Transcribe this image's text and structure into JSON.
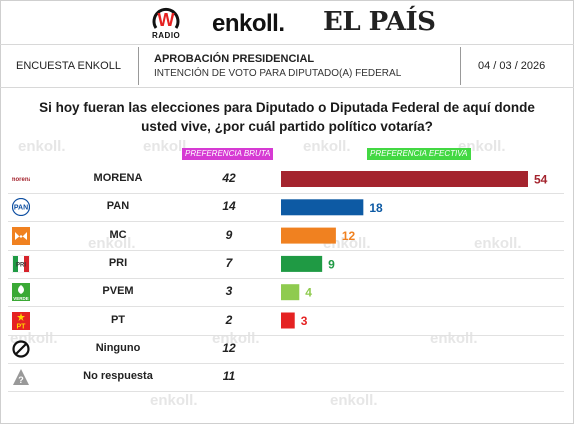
{
  "brand": {
    "wradio_letter": "W",
    "wradio_sub": "RADIO",
    "enkoll": "enkoll.",
    "elpais": "EL PAÍS",
    "watermark": "enkoll."
  },
  "header": {
    "left": "ENCUESTA ENKOLL",
    "title": "APROBACIÓN PRESIDENCIAL",
    "subtitle": "INTENCIÓN DE VOTO PARA DIPUTADO(A) FEDERAL",
    "date": "04 / 03 / 2026"
  },
  "question": "Si hoy fueran las elecciones para Diputado o Diputada Federal de aquí donde usted vive, ¿por cuál partido político votaría?",
  "chart_data": {
    "type": "bar",
    "orientation": "horizontal",
    "columns": {
      "bruta": "PREFERENCIA BRUTA",
      "efectiva": "PREFERENCIA EFECTIVA"
    },
    "categories": [
      "MORENA",
      "PAN",
      "MC",
      "PRI",
      "PVEM",
      "PT",
      "Ninguno",
      "No respuesta"
    ],
    "series": [
      {
        "name": "PREFERENCIA BRUTA",
        "values": [
          42,
          14,
          9,
          7,
          3,
          2,
          12,
          11
        ]
      },
      {
        "name": "PREFERENCIA EFECTIVA",
        "values": [
          54,
          18,
          12,
          9,
          4,
          3,
          null,
          null
        ]
      }
    ],
    "bar_colors": [
      "#a4242e",
      "#0d5aa4",
      "#f08120",
      "#1f9a44",
      "#8fcb4f",
      "#e52222"
    ],
    "xlim": [
      0,
      54
    ],
    "grid": false,
    "legend": "none"
  },
  "logos": {
    "MORENA": {
      "icon": "morena-logo",
      "text": "morena",
      "color": "#a4242e"
    },
    "PAN": {
      "icon": "pan-logo",
      "text": "PAN",
      "color": "#0d4ea1"
    },
    "MC": {
      "icon": "mc-logo",
      "color": "#f08120"
    },
    "PRI": {
      "icon": "pri-logo",
      "text": "PRI",
      "color": "#d6232b"
    },
    "PVEM": {
      "icon": "pvem-logo",
      "text": "VERDE",
      "color": "#3aa935"
    },
    "PT": {
      "icon": "pt-logo",
      "text": "PT",
      "color": "#e52222"
    },
    "Ninguno": {
      "icon": "prohibited-icon",
      "color": "#111111"
    },
    "No respuesta": {
      "icon": "question-triangle-icon",
      "text": "?",
      "color": "#777777"
    }
  }
}
